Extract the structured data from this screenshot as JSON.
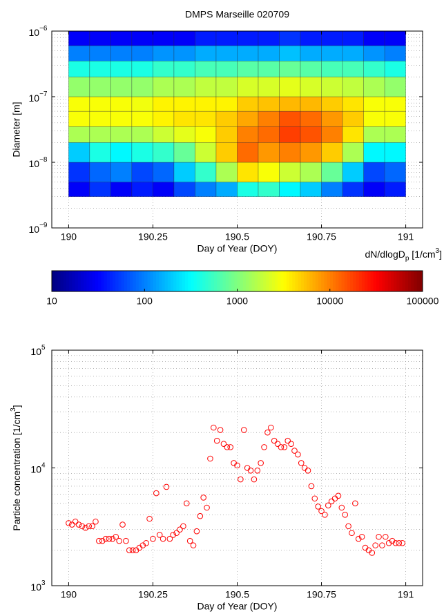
{
  "chart_data": [
    {
      "type": "heatmap",
      "title": "DMPS Marseille 020709",
      "xlabel": "Day of Year (DOY)",
      "ylabel": "Diameter [m]",
      "xlim": [
        189.95,
        191.05
      ],
      "xticks": [
        190,
        190.25,
        190.5,
        190.75,
        191
      ],
      "ylim": [
        1e-09,
        1e-06
      ],
      "yscale": "log",
      "yticks": [
        {
          "value": 1e-09,
          "label": "10",
          "exponent": "−9"
        },
        {
          "value": 1e-08,
          "label": "10",
          "exponent": "−8"
        },
        {
          "value": 1e-07,
          "label": "10",
          "exponent": "−7"
        },
        {
          "value": 1e-06,
          "label": "10",
          "exponent": "−6"
        }
      ],
      "grid": true,
      "minor_grid": true,
      "xbins": [
        190,
        190.0625,
        190.125,
        190.1875,
        190.25,
        190.3125,
        190.375,
        190.4375,
        190.5,
        190.5625,
        190.625,
        190.6875,
        190.75,
        190.8125,
        190.875,
        190.9375,
        191
      ],
      "ybins": [
        3e-09,
        5e-09,
        1e-08,
        2e-08,
        3.5e-08,
        6e-08,
        1e-07,
        2e-07,
        3.5e-07,
        6e-07,
        1e-06
      ],
      "z": [
        [
          30,
          50,
          30,
          40,
          30,
          60,
          100,
          150,
          400,
          500,
          300,
          200,
          100,
          50,
          30,
          40
        ],
        [
          50,
          80,
          100,
          60,
          80,
          200,
          500,
          1500,
          4000,
          3000,
          2000,
          1500,
          800,
          200,
          60,
          80
        ],
        [
          200,
          400,
          300,
          400,
          500,
          800,
          2000,
          5000,
          12000,
          8000,
          10000,
          8000,
          5000,
          1500,
          300,
          300
        ],
        [
          1500,
          1500,
          1500,
          1500,
          2000,
          2500,
          3000,
          5000,
          10000,
          12000,
          18000,
          15000,
          10000,
          4000,
          1500,
          1500
        ],
        [
          3000,
          3000,
          3000,
          3000,
          3500,
          4000,
          4000,
          5000,
          7000,
          10000,
          15000,
          12000,
          8000,
          5000,
          3000,
          3000
        ],
        [
          3000,
          3000,
          3000,
          2800,
          3500,
          3500,
          3500,
          3500,
          5000,
          5500,
          6000,
          6000,
          5000,
          4000,
          3000,
          3000
        ],
        [
          1200,
          1200,
          1200,
          1200,
          1500,
          1500,
          1800,
          1800,
          2200,
          2200,
          2500,
          2200,
          2000,
          1800,
          1500,
          1200
        ],
        [
          400,
          400,
          400,
          400,
          500,
          500,
          600,
          600,
          700,
          700,
          800,
          700,
          600,
          600,
          500,
          400
        ],
        [
          100,
          100,
          100,
          100,
          120,
          120,
          150,
          150,
          150,
          150,
          180,
          150,
          150,
          150,
          120,
          100
        ],
        [
          30,
          30,
          30,
          30,
          30,
          30,
          40,
          40,
          40,
          40,
          50,
          40,
          40,
          40,
          30,
          30
        ]
      ],
      "colormap": "jet",
      "clim": [
        10,
        100000
      ],
      "cscale": "log",
      "colorbar": {
        "label": [
          "dN/dlogD",
          "p",
          " [1/cm",
          "3",
          "]"
        ],
        "ticks": [
          10,
          100,
          1000,
          10000,
          100000
        ]
      }
    },
    {
      "type": "scatter",
      "xlabel": "Day of Year (DOY)",
      "ylabel": [
        "Particle concentration [1/cm",
        "3",
        "]"
      ],
      "xlim": [
        189.95,
        191.05
      ],
      "xticks": [
        190,
        190.25,
        190.5,
        190.75,
        191
      ],
      "ylim": [
        1000,
        100000
      ],
      "yscale": "log",
      "yticks": [
        {
          "value": 1000,
          "label": "10",
          "exponent": "3"
        },
        {
          "value": 10000,
          "label": "10",
          "exponent": "4"
        },
        {
          "value": 100000,
          "label": "10",
          "exponent": "5"
        }
      ],
      "grid": true,
      "minor_grid": true,
      "color": "#ff0000",
      "x": [
        190,
        190.01,
        190.02,
        190.03,
        190.04,
        190.05,
        190.06,
        190.07,
        190.08,
        190.09,
        190.1,
        190.11,
        190.12,
        190.13,
        190.14,
        190.15,
        190.16,
        190.17,
        190.18,
        190.19,
        190.2,
        190.21,
        190.22,
        190.23,
        190.24,
        190.25,
        190.26,
        190.27,
        190.28,
        190.29,
        190.3,
        190.31,
        190.32,
        190.33,
        190.34,
        190.35,
        190.36,
        190.37,
        190.38,
        190.39,
        190.4,
        190.41,
        190.42,
        190.43,
        190.44,
        190.45,
        190.46,
        190.47,
        190.48,
        190.49,
        190.5,
        190.51,
        190.52,
        190.53,
        190.54,
        190.55,
        190.56,
        190.57,
        190.58,
        190.59,
        190.6,
        190.61,
        190.62,
        190.63,
        190.64,
        190.65,
        190.66,
        190.67,
        190.68,
        190.69,
        190.7,
        190.71,
        190.72,
        190.73,
        190.74,
        190.75,
        190.76,
        190.77,
        190.78,
        190.79,
        190.8,
        190.81,
        190.82,
        190.83,
        190.84,
        190.85,
        190.86,
        190.87,
        190.88,
        190.89,
        190.9,
        190.91,
        190.92,
        190.93,
        190.94,
        190.95,
        190.96,
        190.97,
        190.98,
        190.99
      ],
      "y": [
        3400,
        3300,
        3500,
        3300,
        3200,
        3100,
        3200,
        3200,
        3500,
        2400,
        2400,
        2500,
        2500,
        2500,
        2600,
        2400,
        3300,
        2400,
        2000,
        2000,
        2000,
        2100,
        2200,
        2300,
        3700,
        2500,
        6100,
        2700,
        2500,
        6900,
        2500,
        2700,
        2800,
        3000,
        3200,
        5000,
        2400,
        2200,
        2900,
        3900,
        5600,
        4600,
        12000,
        22000,
        17000,
        21000,
        16000,
        15000,
        15000,
        11000,
        10500,
        8000,
        21000,
        10000,
        9500,
        8000,
        9500,
        11000,
        15000,
        20000,
        22000,
        17000,
        16000,
        15000,
        15000,
        17000,
        16000,
        14000,
        13000,
        11000,
        10000,
        9500,
        7000,
        5500,
        4700,
        4300,
        4000,
        4800,
        5200,
        5500,
        5800,
        4600,
        4000,
        3200,
        2800,
        5000,
        2500,
        2600,
        2100,
        2000,
        1900,
        2200,
        2600,
        2200,
        2600,
        2300,
        2400,
        2300,
        2300,
        2300
      ]
    }
  ]
}
